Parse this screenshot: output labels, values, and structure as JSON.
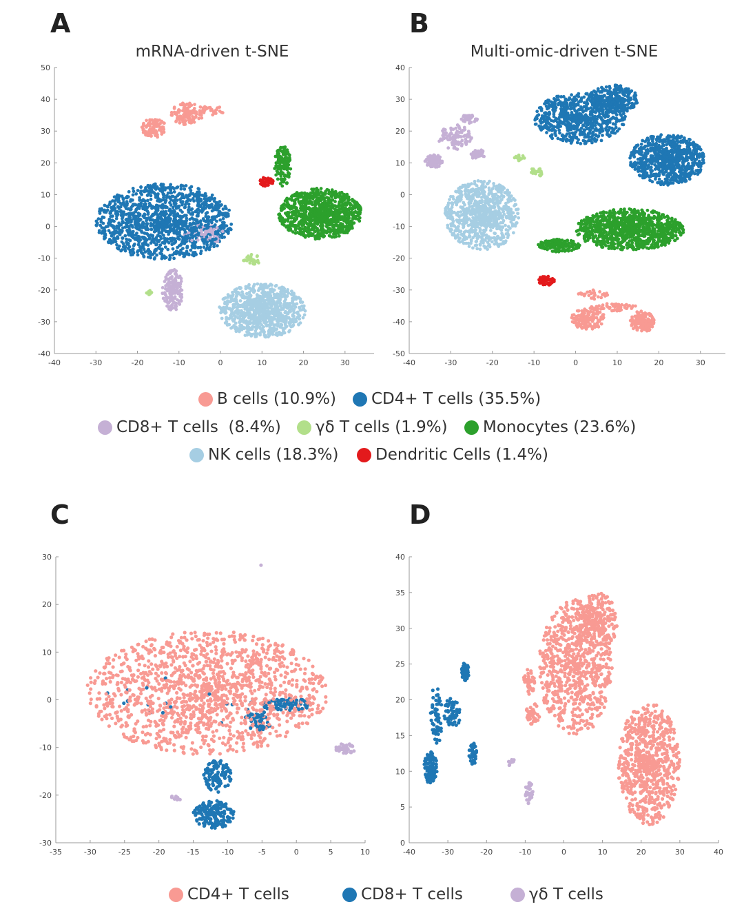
{
  "panels": {
    "a": {
      "letter": "A",
      "title": "mRNA-driven t-SNE"
    },
    "b": {
      "letter": "B",
      "title": "Multi-omic-driven t-SNE"
    },
    "c": {
      "letter": "C"
    },
    "d": {
      "letter": "D"
    }
  },
  "legend_top": [
    {
      "label": "B cells (10.9%)",
      "color": "#f89a93"
    },
    {
      "label": "CD4+ T cells (35.5%)",
      "color": "#1f77b4"
    },
    {
      "label": "CD8+ T cells  (8.4%)",
      "color": "#c5b0d5"
    },
    {
      "label": "γδ T cells (1.9%)",
      "color": "#b2df8a"
    },
    {
      "label": "Monocytes (23.6%)",
      "color": "#2ca02c"
    },
    {
      "label": "NK cells (18.3%)",
      "color": "#a6cee3"
    },
    {
      "label": "Dendritic Cells (1.4%)",
      "color": "#e31a1c"
    }
  ],
  "legend_bottom": [
    {
      "label": "CD4+ T cells",
      "color": "#f89a93"
    },
    {
      "label": "CD8+ T cells",
      "color": "#1f77b4"
    },
    {
      "label": "γδ T cells",
      "color": "#c5b0d5"
    }
  ],
  "chart_data": [
    {
      "id": "a",
      "type": "scatter",
      "title": "mRNA-driven t-SNE",
      "xlim": [
        -40,
        37
      ],
      "ylim": [
        -40,
        50
      ],
      "xticks": [
        -40,
        -30,
        -20,
        -10,
        0,
        10,
        20,
        30
      ],
      "yticks": [
        -40,
        -30,
        -20,
        -10,
        0,
        10,
        20,
        30,
        40,
        50
      ],
      "grid": false,
      "clusters": [
        {
          "series": "B cells",
          "color": "#f89a93",
          "center": [
            -16,
            31
          ],
          "radius": [
            3,
            3
          ],
          "n": 90
        },
        {
          "series": "B cells",
          "color": "#f89a93",
          "center": [
            -8,
            35.5
          ],
          "radius": [
            4,
            3.5
          ],
          "n": 110
        },
        {
          "series": "B cells",
          "color": "#f89a93",
          "center": [
            -2,
            36.5
          ],
          "radius": [
            3,
            1.5
          ],
          "n": 25
        },
        {
          "series": "CD4+ T cells",
          "color": "#1f77b4",
          "center": [
            -13.5,
            1.5
          ],
          "radius": [
            16.5,
            12
          ],
          "n": 1300
        },
        {
          "series": "CD8+ T cells",
          "color": "#c5b0d5",
          "center": [
            -4,
            -2.5
          ],
          "radius": [
            5,
            3
          ],
          "n": 70
        },
        {
          "series": "CD8+ T cells",
          "color": "#c5b0d5",
          "center": [
            -11.5,
            -20
          ],
          "radius": [
            2.5,
            6.5
          ],
          "n": 160
        },
        {
          "series": "γδ T cells",
          "color": "#b2df8a",
          "center": [
            7.5,
            -10.5
          ],
          "radius": [
            2,
            1.8
          ],
          "n": 30
        },
        {
          "series": "γδ T cells",
          "color": "#b2df8a",
          "center": [
            -17,
            -21
          ],
          "radius": [
            1,
            0.8
          ],
          "n": 8
        },
        {
          "series": "Monocytes",
          "color": "#2ca02c",
          "center": [
            15,
            19
          ],
          "radius": [
            2,
            6.5
          ],
          "n": 130
        },
        {
          "series": "Monocytes",
          "color": "#2ca02c",
          "center": [
            24,
            4
          ],
          "radius": [
            10,
            8
          ],
          "n": 950
        },
        {
          "series": "NK cells",
          "color": "#a6cee3",
          "center": [
            10,
            -26.5
          ],
          "radius": [
            10.5,
            8.5
          ],
          "n": 850
        },
        {
          "series": "Dendritic Cells",
          "color": "#e31a1c",
          "center": [
            11,
            14
          ],
          "radius": [
            1.8,
            1.5
          ],
          "n": 40
        }
      ]
    },
    {
      "id": "b",
      "type": "scatter",
      "title": "Multi-omic-driven t-SNE",
      "xlim": [
        -40,
        36
      ],
      "ylim": [
        -50,
        40
      ],
      "xticks": [
        -40,
        -30,
        -20,
        -10,
        0,
        10,
        20,
        30
      ],
      "yticks": [
        -50,
        -40,
        -30,
        -20,
        -10,
        0,
        10,
        20,
        30,
        40
      ],
      "grid": false,
      "clusters": [
        {
          "series": "CD4+ T cells",
          "color": "#1f77b4",
          "center": [
            1,
            24
          ],
          "radius": [
            11,
            8
          ],
          "n": 700
        },
        {
          "series": "CD4+ T cells",
          "color": "#1f77b4",
          "center": [
            9,
            30
          ],
          "radius": [
            6,
            4.5
          ],
          "n": 300
        },
        {
          "series": "CD4+ T cells",
          "color": "#1f77b4",
          "center": [
            22,
            11
          ],
          "radius": [
            9,
            8
          ],
          "n": 800
        },
        {
          "series": "CD8+ T cells",
          "color": "#c5b0d5",
          "center": [
            -34,
            10.5
          ],
          "radius": [
            2.2,
            2
          ],
          "n": 80
        },
        {
          "series": "CD8+ T cells",
          "color": "#c5b0d5",
          "center": [
            -29,
            18
          ],
          "radius": [
            4,
            4
          ],
          "n": 100
        },
        {
          "series": "CD8+ T cells",
          "color": "#c5b0d5",
          "center": [
            -25.5,
            24
          ],
          "radius": [
            2,
            1.5
          ],
          "n": 40
        },
        {
          "series": "CD8+ T cells",
          "color": "#c5b0d5",
          "center": [
            -23.5,
            12.5
          ],
          "radius": [
            1.8,
            1.8
          ],
          "n": 40
        },
        {
          "series": "γδ T cells",
          "color": "#b2df8a",
          "center": [
            -13.5,
            11.5
          ],
          "radius": [
            1.2,
            1
          ],
          "n": 15
        },
        {
          "series": "γδ T cells",
          "color": "#b2df8a",
          "center": [
            -9.5,
            7
          ],
          "radius": [
            1.5,
            1.5
          ],
          "n": 25
        },
        {
          "series": "NK cells",
          "color": "#a6cee3",
          "center": [
            -22.5,
            -6.5
          ],
          "radius": [
            9,
            11
          ],
          "n": 800
        },
        {
          "series": "Monocytes",
          "color": "#2ca02c",
          "center": [
            13,
            -11
          ],
          "radius": [
            13,
            6.5
          ],
          "n": 1000
        },
        {
          "series": "Monocytes",
          "color": "#2ca02c",
          "center": [
            -4,
            -16
          ],
          "radius": [
            5,
            2
          ],
          "n": 150
        },
        {
          "series": "Dendritic Cells",
          "color": "#e31a1c",
          "center": [
            -7,
            -27
          ],
          "radius": [
            2,
            1.5
          ],
          "n": 60
        },
        {
          "series": "B cells",
          "color": "#f89a93",
          "center": [
            3,
            -39
          ],
          "radius": [
            4,
            3.5
          ],
          "n": 150
        },
        {
          "series": "B cells",
          "color": "#f89a93",
          "center": [
            16,
            -40
          ],
          "radius": [
            3,
            3.5
          ],
          "n": 150
        },
        {
          "series": "B cells",
          "color": "#f89a93",
          "center": [
            9,
            -35.5
          ],
          "radius": [
            6,
            1.2
          ],
          "n": 60
        },
        {
          "series": "B cells",
          "color": "#f89a93",
          "center": [
            4,
            -31.5
          ],
          "radius": [
            4,
            1.5
          ],
          "n": 30
        }
      ]
    },
    {
      "id": "c",
      "type": "scatter",
      "xlim": [
        -35,
        10
      ],
      "ylim": [
        -30,
        30
      ],
      "xticks": [
        -35,
        -30,
        -25,
        -20,
        -15,
        -10,
        -5,
        0,
        5,
        10
      ],
      "yticks": [
        -30,
        -20,
        -10,
        0,
        10,
        20,
        30
      ],
      "grid": false,
      "clusters": [
        {
          "series": "CD4+ T cells",
          "color": "#f89a93",
          "center": [
            -13,
            1.5
          ],
          "radius": [
            17.5,
            13
          ],
          "n": 1400
        },
        {
          "series": "CD8+ T cells",
          "color": "#1f77b4",
          "center": [
            -1.5,
            -1
          ],
          "radius": [
            3.5,
            1.5
          ],
          "n": 80
        },
        {
          "series": "CD8+ T cells",
          "color": "#1f77b4",
          "center": [
            -5.5,
            -4.5
          ],
          "radius": [
            2.5,
            2
          ],
          "n": 45
        },
        {
          "series": "CD8+ T cells",
          "color": "#1f77b4",
          "center": [
            -11.5,
            -16
          ],
          "radius": [
            2,
            3.5
          ],
          "n": 100
        },
        {
          "series": "CD8+ T cells",
          "color": "#1f77b4",
          "center": [
            -12,
            -24
          ],
          "radius": [
            3,
            3
          ],
          "n": 160
        },
        {
          "series": "CD8+ T cells",
          "color": "#1f77b4",
          "center": [
            -18,
            0
          ],
          "radius": [
            12,
            6
          ],
          "n": 18
        },
        {
          "series": "γδ T cells",
          "color": "#c5b0d5",
          "center": [
            7.2,
            -10.2
          ],
          "radius": [
            1.5,
            1
          ],
          "n": 40
        },
        {
          "series": "γδ T cells",
          "color": "#c5b0d5",
          "center": [
            -17.3,
            -20.5
          ],
          "radius": [
            1,
            0.6
          ],
          "n": 10
        },
        {
          "series": "γδ T cells",
          "color": "#c5b0d5",
          "center": [
            -5.2,
            28.3
          ],
          "radius": [
            0.1,
            0.1
          ],
          "n": 1
        }
      ]
    },
    {
      "id": "d",
      "type": "scatter",
      "xlim": [
        -40,
        40
      ],
      "ylim": [
        0,
        40
      ],
      "xticks": [
        -40,
        -30,
        -20,
        -10,
        0,
        10,
        20,
        30,
        40
      ],
      "yticks": [
        0,
        5,
        10,
        15,
        20,
        25,
        30,
        35,
        40
      ],
      "grid": false,
      "clusters": [
        {
          "series": "CD4+ T cells",
          "color": "#f89a93",
          "center": [
            3,
            24.5
          ],
          "radius": [
            9.5,
            9.5
          ],
          "n": 750
        },
        {
          "series": "CD4+ T cells",
          "color": "#f89a93",
          "center": [
            9,
            31
          ],
          "radius": [
            5,
            4
          ],
          "n": 200
        },
        {
          "series": "CD4+ T cells",
          "color": "#f89a93",
          "center": [
            22,
            11
          ],
          "radius": [
            8,
            8.5
          ],
          "n": 700
        },
        {
          "series": "CD4+ T cells",
          "color": "#f89a93",
          "center": [
            -8,
            18
          ],
          "radius": [
            1.8,
            1.5
          ],
          "n": 40
        },
        {
          "series": "CD4+ T cells",
          "color": "#f89a93",
          "center": [
            -9,
            22.5
          ],
          "radius": [
            1.5,
            2
          ],
          "n": 40
        },
        {
          "series": "CD8+ T cells",
          "color": "#1f77b4",
          "center": [
            -34.5,
            10.5
          ],
          "radius": [
            1.7,
            2.2
          ],
          "n": 110
        },
        {
          "series": "CD8+ T cells",
          "color": "#1f77b4",
          "center": [
            -33,
            18
          ],
          "radius": [
            1.5,
            4.5
          ],
          "n": 60
        },
        {
          "series": "CD8+ T cells",
          "color": "#1f77b4",
          "center": [
            -29,
            18
          ],
          "radius": [
            2.2,
            2.2
          ],
          "n": 60
        },
        {
          "series": "CD8+ T cells",
          "color": "#1f77b4",
          "center": [
            -25.5,
            24
          ],
          "radius": [
            1,
            1.3
          ],
          "n": 50
        },
        {
          "series": "CD8+ T cells",
          "color": "#1f77b4",
          "center": [
            -23.5,
            12.5
          ],
          "radius": [
            1,
            1.6
          ],
          "n": 40
        },
        {
          "series": "γδ T cells",
          "color": "#c5b0d5",
          "center": [
            -9,
            7
          ],
          "radius": [
            1,
            1.5
          ],
          "n": 40
        },
        {
          "series": "γδ T cells",
          "color": "#c5b0d5",
          "center": [
            -13.5,
            11.2
          ],
          "radius": [
            1,
            0.5
          ],
          "n": 10
        }
      ]
    }
  ]
}
